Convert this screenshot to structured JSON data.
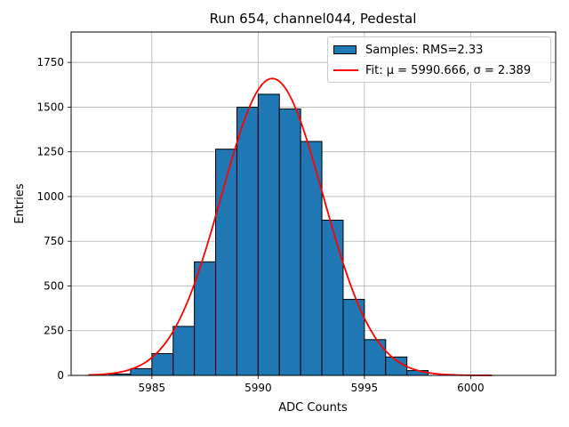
{
  "chart_data": {
    "type": "bar",
    "title": "Run 654, channel044, Pedestal",
    "xlabel": "ADC Counts",
    "ylabel": "Entries",
    "xlim": [
      5981.2,
      6004.0
    ],
    "ylim": [
      0,
      1920
    ],
    "xticks": [
      5985,
      5990,
      5995,
      6000
    ],
    "yticks": [
      0,
      250,
      500,
      750,
      1000,
      1250,
      1500,
      1750
    ],
    "grid": true,
    "legend_position": "top-right",
    "histogram": {
      "name": "Samples: RMS=2.33",
      "color": "#1f77b4",
      "bins": [
        {
          "x0": 5983.0,
          "x1": 5984.0,
          "count": 8
        },
        {
          "x0": 5984.0,
          "x1": 5985.0,
          "count": 38
        },
        {
          "x0": 5985.0,
          "x1": 5986.0,
          "count": 122
        },
        {
          "x0": 5986.0,
          "x1": 5987.0,
          "count": 274
        },
        {
          "x0": 5987.0,
          "x1": 5988.0,
          "count": 635
        },
        {
          "x0": 5988.0,
          "x1": 5989.0,
          "count": 1265
        },
        {
          "x0": 5989.0,
          "x1": 5990.0,
          "count": 1500
        },
        {
          "x0": 5990.0,
          "x1": 5991.0,
          "count": 1572
        },
        {
          "x0": 5991.0,
          "x1": 5992.0,
          "count": 1490
        },
        {
          "x0": 5992.0,
          "x1": 5993.0,
          "count": 1308
        },
        {
          "x0": 5993.0,
          "x1": 5994.0,
          "count": 868
        },
        {
          "x0": 5994.0,
          "x1": 5995.0,
          "count": 425
        },
        {
          "x0": 5995.0,
          "x1": 5996.0,
          "count": 200
        },
        {
          "x0": 5996.0,
          "x1": 5997.0,
          "count": 103
        },
        {
          "x0": 5997.0,
          "x1": 5998.0,
          "count": 27
        }
      ]
    },
    "fit": {
      "name": "Fit: μ = 5990.666, σ = 2.389",
      "color": "#ff0000",
      "mu": 5990.666,
      "sigma": 2.389,
      "amplitude": 1660,
      "x_range": [
        5982.0,
        6001.0
      ]
    }
  },
  "legend": {
    "samples_label": "Samples: RMS=2.33",
    "fit_label": "Fit: μ = 5990.666, σ = 2.389"
  }
}
